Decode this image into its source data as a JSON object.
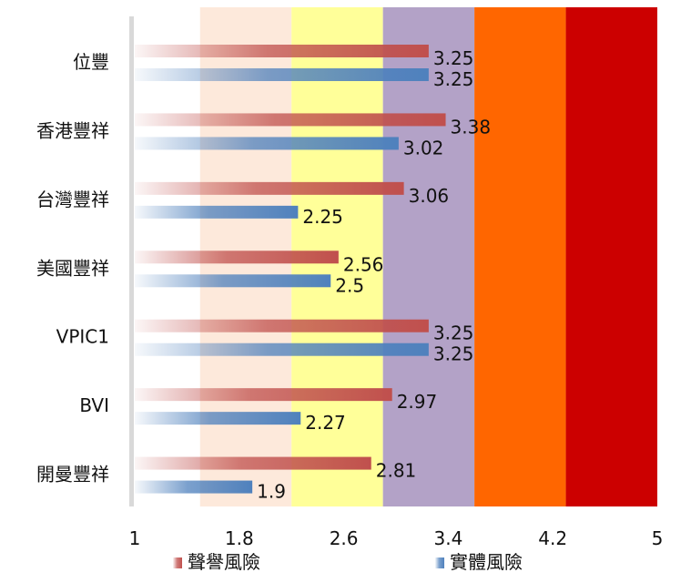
{
  "chart_data": {
    "type": "bar",
    "orientation": "horizontal",
    "title": "",
    "xlabel": "",
    "ylabel": "",
    "xlim": [
      1,
      5
    ],
    "x_ticks": [
      "1",
      "1.8",
      "2.6",
      "3.4",
      "4.2",
      "5"
    ],
    "background_bands": [
      {
        "from": 1.5,
        "to": 2.2,
        "color": "#fde9db"
      },
      {
        "from": 2.2,
        "to": 2.9,
        "color": "#ffff99"
      },
      {
        "from": 2.9,
        "to": 3.6,
        "color": "#b3a2c7"
      },
      {
        "from": 3.6,
        "to": 4.3,
        "color": "#ff6600"
      },
      {
        "from": 4.3,
        "to": 5.0,
        "color": "#cc0000"
      }
    ],
    "categories": [
      "位豐",
      "香港豐祥",
      "台灣豐祥",
      "美國豐祥",
      "VPIC1",
      "BVI",
      "開曼豐祥"
    ],
    "series": [
      {
        "name": "聲譽風險",
        "color": "#c0504d",
        "values": [
          3.25,
          3.38,
          3.06,
          2.56,
          3.25,
          2.97,
          2.81
        ],
        "labels": [
          "3.25",
          "3.38",
          "3.06",
          "2.56",
          "3.25",
          "2.97",
          "2.81"
        ]
      },
      {
        "name": "實體風險",
        "color": "#4f81bd",
        "values": [
          3.25,
          3.02,
          2.25,
          2.5,
          3.25,
          2.27,
          1.9
        ],
        "labels": [
          "3.25",
          "3.02",
          "2.25",
          "2.5",
          "3.25",
          "2.27",
          "1.9"
        ]
      }
    ],
    "legend": "bottom"
  }
}
